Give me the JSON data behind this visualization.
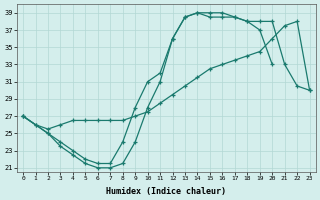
{
  "xlabel": "Humidex (Indice chaleur)",
  "xlim": [
    -0.5,
    23.5
  ],
  "ylim": [
    20.5,
    40
  ],
  "yticks": [
    21,
    23,
    25,
    27,
    29,
    31,
    33,
    35,
    37,
    39
  ],
  "xticks": [
    0,
    1,
    2,
    3,
    4,
    5,
    6,
    7,
    8,
    9,
    10,
    11,
    12,
    13,
    14,
    15,
    16,
    17,
    18,
    19,
    20,
    21,
    22,
    23
  ],
  "line_color": "#1a7a6e",
  "bg_color": "#d4eeec",
  "grid_color": "#b2d8d4",
  "line1_x": [
    0,
    1,
    2,
    3,
    4,
    5,
    6,
    7,
    8,
    9,
    10,
    11,
    12,
    13,
    14,
    15,
    16,
    17,
    18,
    19,
    20
  ],
  "line1_y": [
    27,
    26,
    25,
    24,
    23,
    22,
    21.5,
    21.5,
    24,
    28,
    31,
    32,
    36,
    38.5,
    39,
    39,
    39,
    38.5,
    38,
    37,
    33
  ],
  "line2_x": [
    0,
    1,
    2,
    3,
    4,
    5,
    6,
    7,
    8,
    9,
    10,
    11,
    12,
    13,
    14,
    15,
    16,
    17,
    18,
    19,
    20,
    21,
    22,
    23
  ],
  "line2_y": [
    27,
    26,
    25.5,
    26,
    26.5,
    26.5,
    26.5,
    26.5,
    26.5,
    27,
    27.5,
    28.5,
    29.5,
    30.5,
    31.5,
    32.5,
    33,
    33.5,
    34,
    34.5,
    36,
    37.5,
    38,
    30
  ],
  "line3_x": [
    0,
    2,
    3,
    4,
    5,
    6,
    7,
    8,
    9,
    10,
    11,
    12,
    13,
    14,
    15,
    16,
    17,
    18,
    19,
    20,
    21,
    22,
    23
  ],
  "line3_y": [
    27,
    25,
    23.5,
    22.5,
    21.5,
    21,
    21,
    21.5,
    24,
    28,
    31,
    36,
    38.5,
    39,
    38.5,
    38.5,
    38.5,
    38,
    38,
    38,
    33,
    30.5,
    30
  ]
}
